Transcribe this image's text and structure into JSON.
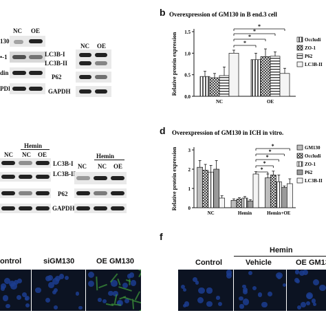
{
  "panels": {
    "a": {
      "group_labels": [
        "NC",
        "OE",
        "NC",
        "OE"
      ],
      "proteins_left": [
        "130",
        "•-1",
        "din",
        "PDH"
      ],
      "proteins_right": [
        "LC3B-I",
        "LC3B-II",
        "P62",
        "GAPDH"
      ]
    },
    "c": {
      "hemin_label": "Hemin",
      "group_labels_left": [
        "NC",
        "NC",
        "OE"
      ],
      "group_labels_right": [
        "NC",
        "NC",
        "OE"
      ],
      "proteins_left": [
        "LC3B-I",
        "LC3B-II",
        "P62",
        "GAPDH"
      ]
    },
    "e": {
      "labels": [
        "ontrol",
        "siGM130",
        "OE GM130"
      ]
    },
    "f": {
      "letter": "f",
      "hemin_label": "Hemin",
      "labels": [
        "Control",
        "Vehicle",
        "OE GM13"
      ]
    }
  },
  "chart_data": [
    {
      "panel": "b",
      "type": "bar",
      "title": "Overexpression of GM130 in B end.3 cell",
      "ylabel": "Relative protein expression",
      "xlabel": "",
      "ylim": [
        0,
        1.5
      ],
      "yticks": [
        "0.0",
        "0.5",
        "1.0",
        "1.5"
      ],
      "categories": [
        "NC",
        "OE"
      ],
      "series": [
        {
          "name": "Occludin",
          "values": [
            0.46,
            0.85
          ],
          "errors": [
            0.12,
            0.15
          ]
        },
        {
          "name": "ZO-1",
          "values": [
            0.43,
            0.92
          ],
          "errors": [
            0.1,
            0.18
          ]
        },
        {
          "name": "P62",
          "values": [
            0.48,
            0.93
          ],
          "errors": [
            0.2,
            0.1
          ]
        },
        {
          "name": "LC3B-II",
          "values": [
            1.0,
            0.53
          ],
          "errors": [
            0.07,
            0.12
          ]
        }
      ],
      "legend_labels": [
        "Occludi",
        "ZO-1",
        "P62",
        "LC3B-II"
      ],
      "significance": [
        "*",
        "*",
        "*",
        "*"
      ],
      "legend": "right"
    },
    {
      "panel": "d",
      "type": "bar",
      "title": "Overexpression of GM130 in ICH in vitro.",
      "ylabel": "Relative protein expression",
      "xlabel": "",
      "ylim": [
        0,
        3
      ],
      "yticks": [
        "0",
        "1",
        "2",
        "3"
      ],
      "categories": [
        "NC",
        "Hemin",
        "Hemin+OE"
      ],
      "series": [
        {
          "name": "GM130",
          "values": [
            2.1,
            0.38,
            1.55
          ],
          "errors": [
            0.35,
            0.08,
            0.2
          ]
        },
        {
          "name": "Occludin",
          "values": [
            1.95,
            0.45,
            1.7
          ],
          "errors": [
            0.3,
            0.07,
            0.2
          ]
        },
        {
          "name": "ZO-1",
          "values": [
            1.85,
            0.5,
            1.35
          ],
          "errors": [
            0.35,
            0.08,
            0.35
          ]
        },
        {
          "name": "P62",
          "values": [
            2.0,
            0.35,
            1.05
          ],
          "errors": [
            0.45,
            0.07,
            0.08
          ]
        },
        {
          "name": "LC3B-II",
          "values": [
            0.5,
            1.75,
            1.25
          ],
          "errors": [
            0.12,
            0.12,
            0.25
          ]
        }
      ],
      "legend_labels": [
        "GM130",
        "Occludi",
        "ZO-1",
        "P62",
        "LC3B-II"
      ],
      "significance": [
        "*",
        "*",
        "*",
        "*",
        "*"
      ],
      "legend": "right"
    }
  ]
}
